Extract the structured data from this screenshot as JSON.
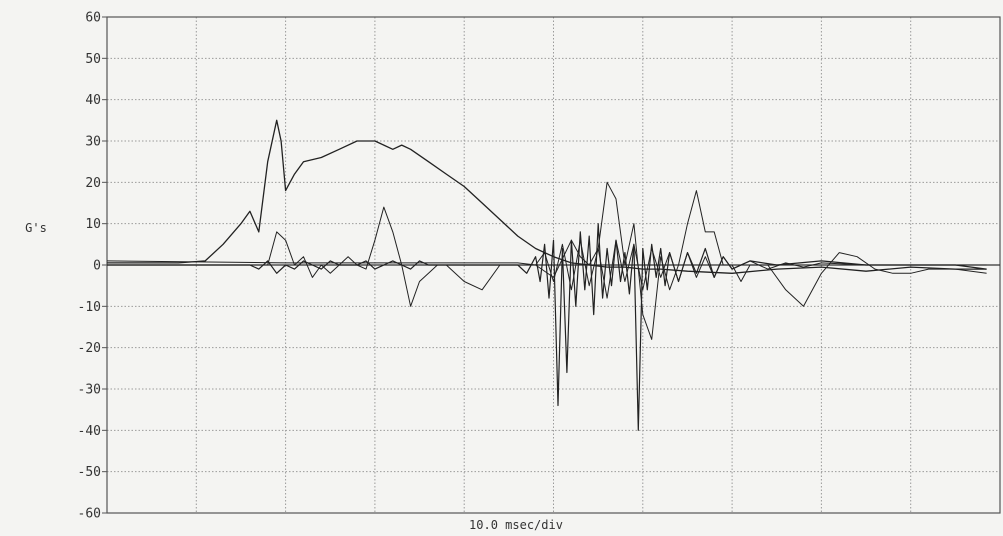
{
  "chart_data": {
    "type": "line",
    "ylabel": "G's",
    "xlabel": "10.0 msec/div",
    "ylim": [
      -60,
      60
    ],
    "yticks": [
      60,
      50,
      40,
      30,
      20,
      10,
      0,
      -10,
      -20,
      -30,
      -40,
      -50,
      -60
    ],
    "ytick_labels": [
      "60",
      "50",
      "40",
      "30",
      "20",
      "10",
      "0",
      "-10",
      "-20",
      "-30",
      "-40",
      "-50",
      "-60"
    ],
    "x_divisions": 10,
    "grid": true,
    "line_color": "#222222",
    "series": [
      {
        "x": [
          0,
          4,
          8,
          11,
          13,
          15,
          16,
          17,
          18,
          19,
          19.5,
          20,
          21,
          22,
          24,
          26,
          28,
          30,
          31,
          32,
          33,
          34,
          36,
          38,
          40,
          42,
          44,
          46,
          48,
          50,
          52,
          54,
          56,
          58,
          60,
          62,
          65,
          70,
          75,
          80,
          85,
          90,
          95,
          98.5
        ],
        "values": [
          0.5,
          0.5,
          0.5,
          1,
          5,
          10,
          13,
          8,
          25,
          35,
          30,
          18,
          22,
          25,
          26,
          28,
          30,
          30,
          29,
          28,
          29,
          28,
          25,
          22,
          19,
          15,
          11,
          7,
          4,
          2,
          0.5,
          0,
          -0.5,
          -0.5,
          -1,
          -1,
          -1.5,
          -2,
          -1,
          -0.5,
          -1.5,
          -0.5,
          -1,
          -1
        ]
      },
      {
        "x": [
          0,
          8,
          10,
          12,
          14,
          15,
          16,
          17,
          18,
          19,
          20,
          21,
          22,
          23,
          24,
          25,
          26,
          27,
          28,
          29,
          30,
          31,
          32,
          33,
          34,
          35,
          36,
          37,
          38,
          40,
          42,
          44,
          46,
          48,
          50,
          52,
          53,
          54,
          55,
          56,
          57,
          58,
          59,
          60,
          61,
          62,
          63,
          64,
          65,
          66,
          67,
          68,
          69,
          70,
          71,
          72,
          74,
          76,
          78,
          80,
          82,
          84,
          86,
          88,
          90,
          92,
          95,
          98.5
        ],
        "values": [
          0,
          0,
          0,
          0,
          0,
          0,
          0,
          0,
          0,
          8,
          6,
          0,
          2,
          -3,
          0,
          -2,
          0,
          2,
          0,
          -1,
          6,
          14,
          8,
          0,
          -10,
          -4,
          -2,
          0,
          0,
          -4,
          -6,
          0,
          0,
          0,
          -3,
          6,
          2,
          0,
          4,
          20,
          16,
          0,
          10,
          -12,
          -18,
          2,
          -6,
          0,
          10,
          18,
          8,
          8,
          0,
          0,
          -4,
          0,
          0,
          -6,
          -10,
          -2,
          3,
          2,
          -1,
          -2,
          -2,
          -1,
          -1,
          -2
        ]
      },
      {
        "x": [
          0,
          10,
          12,
          14,
          16,
          17,
          18,
          19,
          20,
          21,
          22,
          23,
          24,
          25,
          26,
          27,
          28,
          29,
          30,
          31,
          32,
          33,
          34,
          35,
          36,
          38,
          40,
          42,
          44,
          46,
          47,
          48,
          48.5,
          49,
          49.5,
          50,
          50.5,
          51,
          51.5,
          52,
          52.5,
          53,
          53.5,
          54,
          54.5,
          55,
          55.5,
          56,
          56.5,
          57,
          57.5,
          58,
          58.5,
          59,
          59.5,
          60,
          60.5,
          61,
          61.5,
          62,
          62.5,
          63,
          64,
          65,
          66,
          67,
          68,
          69,
          70,
          72,
          75,
          80,
          85,
          90,
          95,
          98.5
        ],
        "values": [
          0,
          0,
          0,
          0,
          0,
          -1,
          1,
          -2,
          0,
          -1,
          1,
          0,
          -1,
          1,
          0,
          0,
          0,
          1,
          -1,
          0,
          1,
          0,
          -1,
          1,
          0,
          0,
          0,
          0,
          0,
          0,
          -2,
          2,
          -4,
          5,
          -8,
          6,
          -34,
          4,
          -26,
          6,
          -10,
          8,
          -6,
          7,
          -12,
          10,
          -8,
          4,
          -5,
          6,
          -4,
          3,
          -7,
          5,
          -40,
          4,
          -6,
          5,
          -3,
          4,
          -5,
          3,
          -4,
          3,
          -2,
          4,
          -3,
          2,
          -1,
          1,
          0,
          1,
          0,
          0,
          0,
          -1
        ]
      },
      {
        "x": [
          0,
          20,
          40,
          46,
          48,
          49,
          50,
          51,
          52,
          53,
          54,
          55,
          56,
          57,
          58,
          59,
          60,
          61,
          62,
          63,
          64,
          65,
          66,
          67,
          68,
          69,
          70,
          72,
          74,
          76,
          78,
          80,
          85,
          90,
          98.5
        ],
        "values": [
          1,
          0.5,
          0.5,
          0.5,
          0,
          3,
          -4,
          5,
          -6,
          6,
          -5,
          4,
          -8,
          6,
          -4,
          5,
          -6,
          4,
          -3,
          3,
          -4,
          3,
          -3,
          2,
          -3,
          2,
          -1,
          1,
          -1,
          0.5,
          -0.5,
          0.5,
          0,
          0,
          0
        ]
      }
    ]
  }
}
